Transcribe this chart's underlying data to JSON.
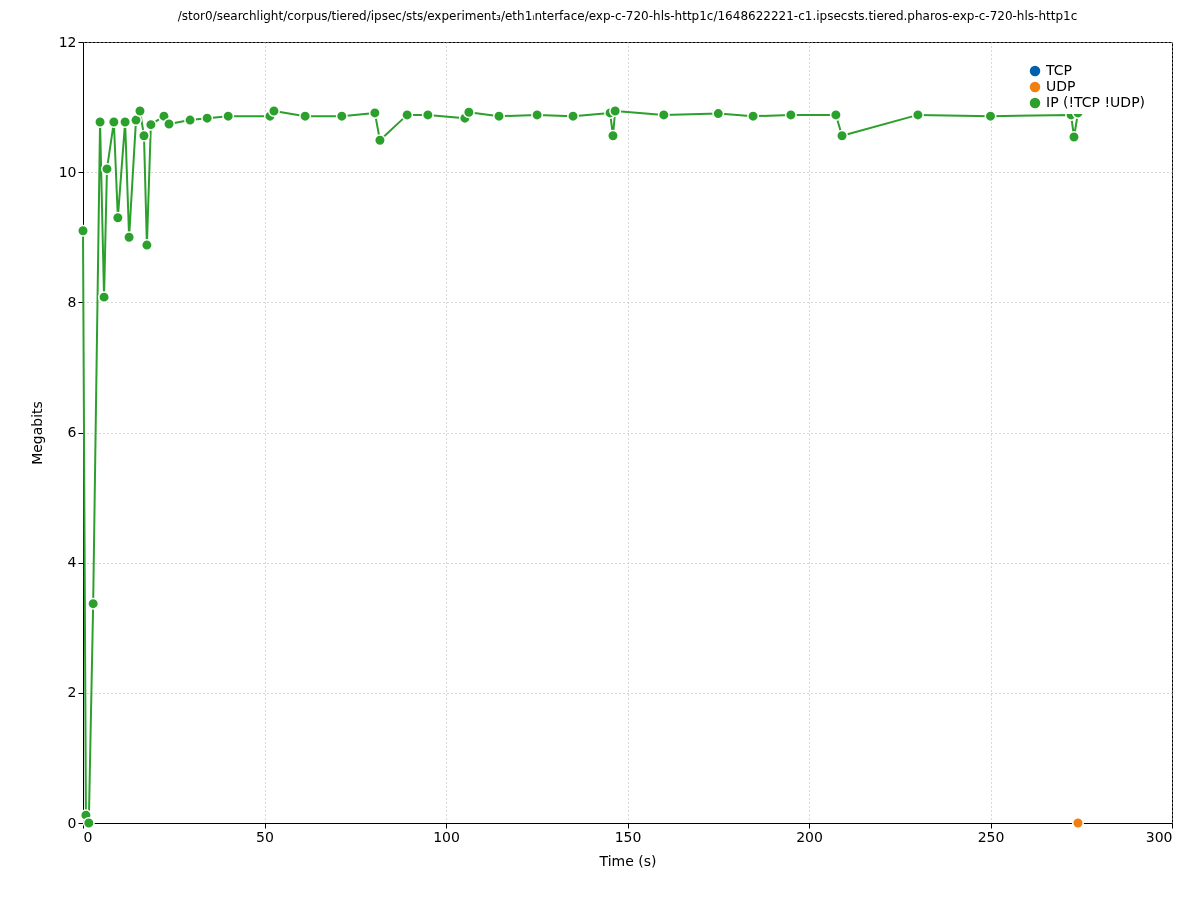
{
  "chart_data": {
    "type": "line",
    "title": "/stor0/searchlight/corpus/tiered/ipsec/sts/experiment₃/eth1ᵢnterface/exp-c-720-hls-http1c/1648622221-c1.ipsecsts.tiered.pharos-exp-c-720-hls-http1c",
    "xlabel": "Time (s)",
    "ylabel": "Megabits",
    "series": [
      {
        "name": "TCP",
        "color": "#0060ad"
      },
      {
        "name": "UDP",
        "color": "#f07f0e",
        "x": [
          274.1
        ],
        "values": [
          0
        ]
      },
      {
        "name": "IP (!TCP  !UDP)",
        "color": "#2ca02c",
        "x": [
          0,
          0.8,
          1.6,
          2.8,
          4.7,
          5.8,
          6.6,
          8.5,
          9.6,
          11.6,
          12.7,
          14.6,
          15.7,
          16.8,
          17.6,
          18.7,
          22.3,
          23.7,
          29.5,
          34.2,
          40,
          51.5,
          52.6,
          61.2,
          71.3,
          80.4,
          81.8,
          89.3,
          95,
          105.2,
          106.3,
          114.6,
          125.1,
          135,
          145.2,
          146,
          146.6,
          160,
          175,
          184.6,
          195,
          207.4,
          209.1,
          230,
          250,
          272.2,
          273,
          274.1
        ],
        "values": [
          9.1,
          0.12,
          0,
          3.37,
          10.77,
          8.08,
          10.05,
          10.77,
          9.3,
          10.77,
          9.0,
          10.8,
          10.94,
          10.56,
          8.88,
          10.73,
          10.86,
          10.74,
          10.8,
          10.83,
          10.86,
          10.86,
          10.94,
          10.86,
          10.86,
          10.91,
          10.49,
          10.88,
          10.88,
          10.83,
          10.92,
          10.86,
          10.88,
          10.86,
          10.91,
          10.56,
          10.94,
          10.88,
          10.9,
          10.86,
          10.88,
          10.88,
          10.56,
          10.88,
          10.86,
          10.88,
          10.54,
          10.91
        ]
      }
    ],
    "xlim": [
      0,
      300
    ],
    "xticks": [
      0,
      50,
      100,
      150,
      200,
      250,
      300
    ],
    "ylim": [
      0,
      12
    ],
    "yticks": [
      0,
      2,
      4,
      6,
      8,
      10,
      12
    ],
    "grid": true,
    "legend": "top right",
    "marker": "circle",
    "line_style": "solid"
  }
}
